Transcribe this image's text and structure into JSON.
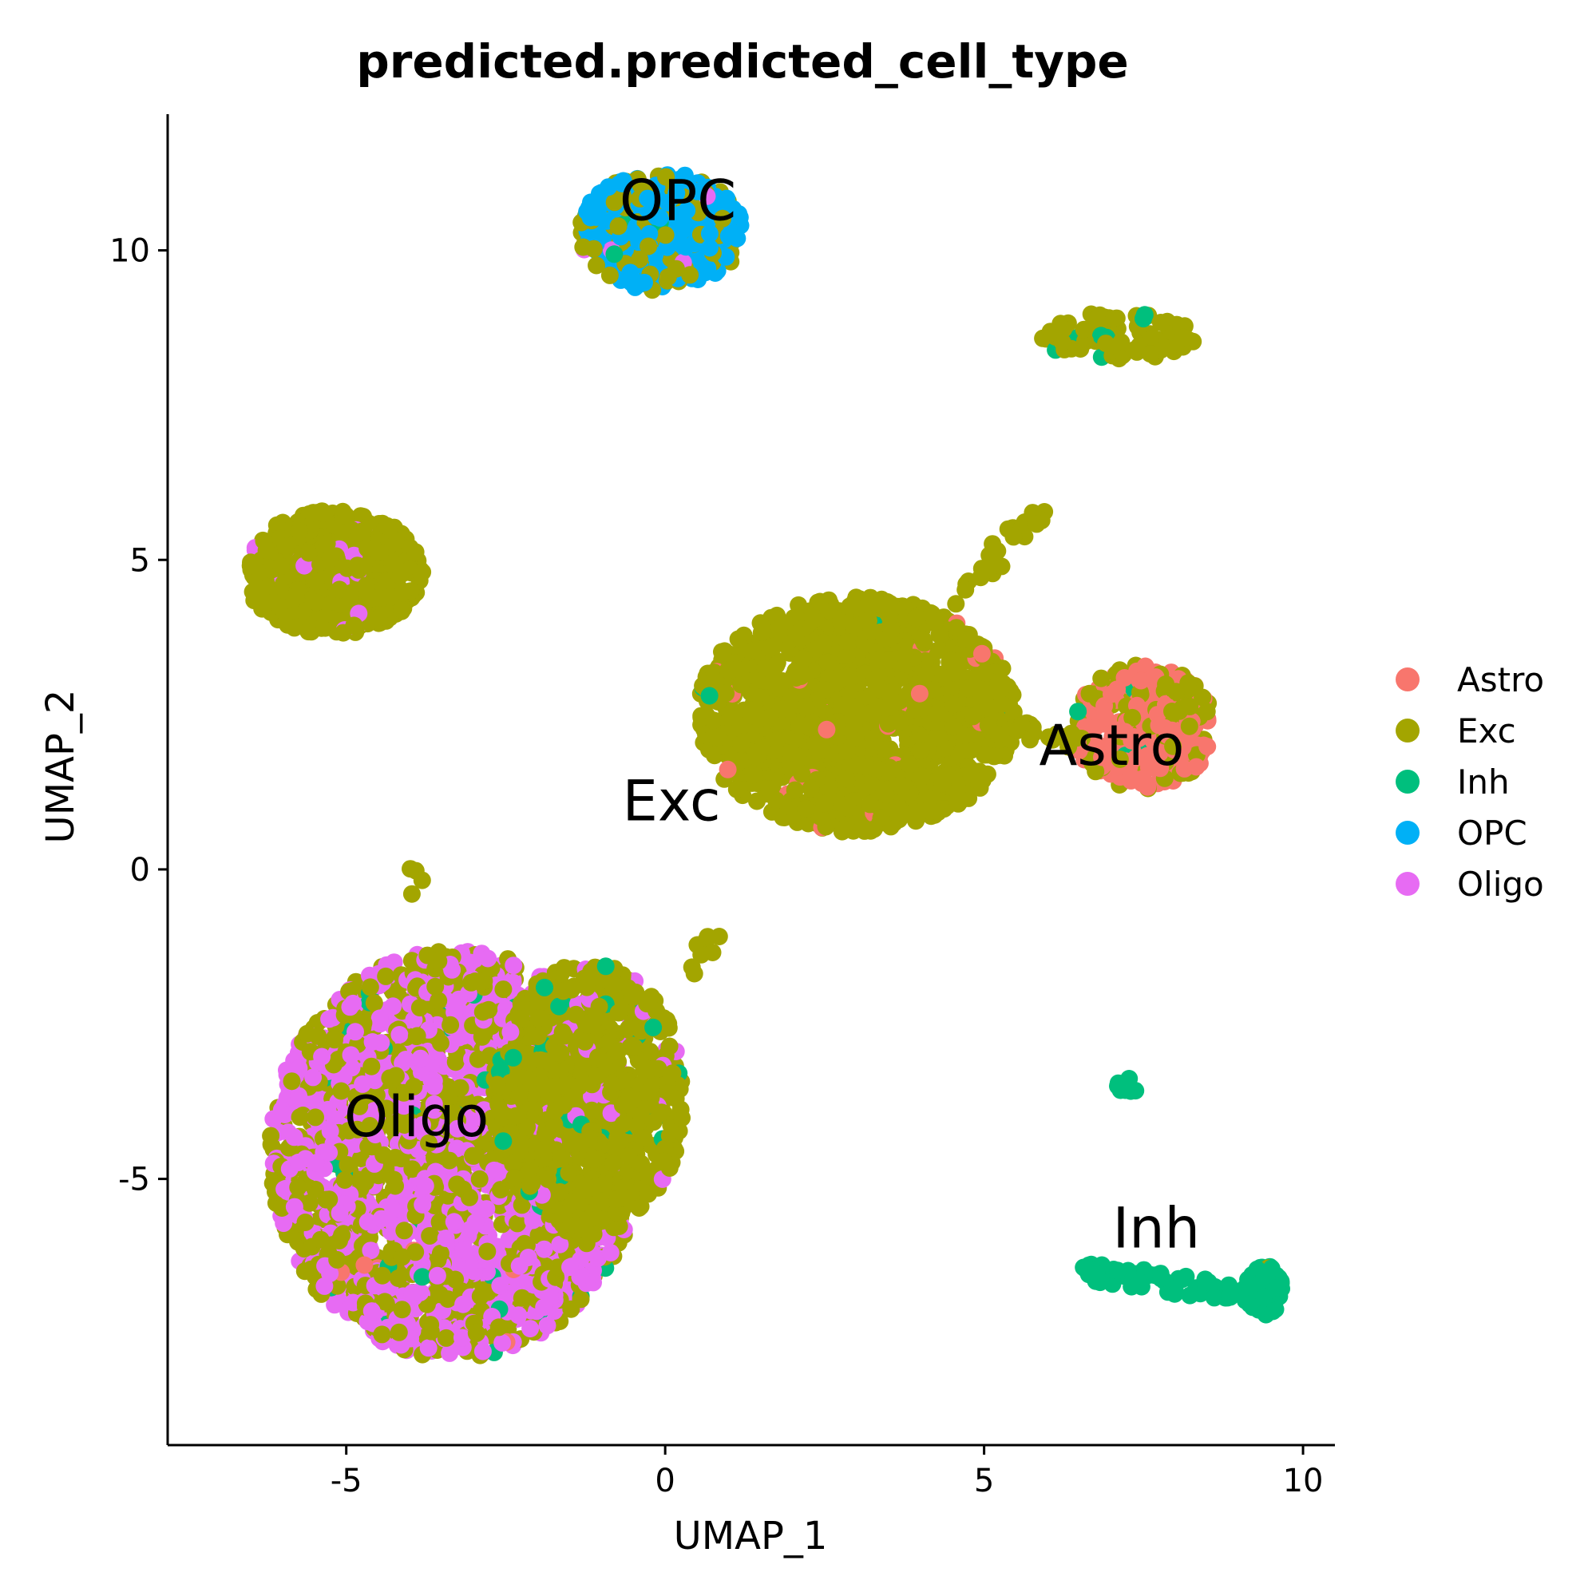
{
  "chart_data": {
    "type": "scatter",
    "title": "predicted.predicted_cell_type",
    "xlabel": "UMAP_1",
    "ylabel": "UMAP_2",
    "xlim": [
      -7.8,
      10.5
    ],
    "ylim": [
      -9.3,
      12.2
    ],
    "xticks": [
      -5,
      0,
      5,
      10
    ],
    "xtick_labels": [
      "-5",
      "0",
      "5",
      "10"
    ],
    "yticks": [
      -5,
      0,
      5,
      10
    ],
    "ytick_labels": [
      "-5",
      "0",
      "5",
      "10"
    ],
    "grid": false,
    "legend_position": "right",
    "series": [
      {
        "name": "Astro",
        "color": "#F8766D"
      },
      {
        "name": "Exc",
        "color": "#A3A500"
      },
      {
        "name": "Inh",
        "color": "#00BF7D"
      },
      {
        "name": "OPC",
        "color": "#00B0F6"
      },
      {
        "name": "Oligo",
        "color": "#E76BF3"
      }
    ],
    "cluster_labels": [
      {
        "text": "OPC",
        "x": 0.2,
        "y": 10.8
      },
      {
        "text": "Astro",
        "x": 7.0,
        "y": 2.0
      },
      {
        "text": "Exc",
        "x": 0.1,
        "y": 1.1
      },
      {
        "text": "Oligo",
        "x": -3.9,
        "y": -4.0
      },
      {
        "text": "Inh",
        "x": 7.7,
        "y": -5.8
      }
    ],
    "clusters": [
      {
        "series": "OPC",
        "cx": -0.05,
        "cy": 10.3,
        "rx": 1.3,
        "ry": 0.95,
        "n": 350,
        "mix": [
          [
            "OPC",
            0.55
          ],
          [
            "Exc",
            0.42
          ],
          [
            "Inh",
            0.02
          ],
          [
            "Oligo",
            0.01
          ]
        ]
      },
      {
        "series": "Exc",
        "cx": 7.1,
        "cy": 8.6,
        "rx": 1.2,
        "ry": 0.4,
        "n": 90,
        "mix": [
          [
            "Exc",
            0.94
          ],
          [
            "Inh",
            0.06
          ]
        ]
      },
      {
        "series": "Exc",
        "cx": -5.2,
        "cy": 4.8,
        "rx": 1.4,
        "ry": 1.0,
        "n": 500,
        "mix": [
          [
            "Exc",
            0.95
          ],
          [
            "Oligo",
            0.04
          ],
          [
            "Inh",
            0.01
          ]
        ]
      },
      {
        "series": "Exc",
        "cx": 3.0,
        "cy": 2.5,
        "rx": 2.5,
        "ry": 1.9,
        "n": 1400,
        "mix": [
          [
            "Exc",
            0.97
          ],
          [
            "Astro",
            0.02
          ],
          [
            "Inh",
            0.01
          ]
        ]
      },
      {
        "series": "Astro",
        "cx": 7.5,
        "cy": 2.3,
        "rx": 1.1,
        "ry": 1.0,
        "n": 320,
        "mix": [
          [
            "Astro",
            0.62
          ],
          [
            "Exc",
            0.35
          ],
          [
            "Inh",
            0.03
          ]
        ]
      },
      {
        "series": "Oligo",
        "cx": -3.3,
        "cy": -4.6,
        "rx": 2.9,
        "ry": 3.3,
        "n": 2400,
        "mix": [
          [
            "Oligo",
            0.5
          ],
          [
            "Exc",
            0.47
          ],
          [
            "Inh",
            0.02
          ],
          [
            "Astro",
            0.01
          ]
        ]
      },
      {
        "series": "Exc",
        "cx": -1.2,
        "cy": -3.7,
        "rx": 1.5,
        "ry": 2.2,
        "n": 700,
        "mix": [
          [
            "Exc",
            0.9
          ],
          [
            "Inh",
            0.05
          ],
          [
            "Oligo",
            0.05
          ]
        ]
      },
      {
        "series": "Inh",
        "cx": 9.4,
        "cy": -6.8,
        "rx": 0.3,
        "ry": 0.4,
        "n": 80,
        "mix": [
          [
            "Inh",
            0.97
          ],
          [
            "Exc",
            0.03
          ]
        ]
      }
    ],
    "trails": [
      {
        "from": [
          4.6,
          4.4
        ],
        "to": [
          5.9,
          5.8
        ],
        "n": 25,
        "color": "Exc"
      },
      {
        "from": [
          5.2,
          2.3
        ],
        "to": [
          6.6,
          2.1
        ],
        "n": 18,
        "color": "Exc"
      },
      {
        "from": [
          6.6,
          -6.5
        ],
        "to": [
          9.3,
          -6.9
        ],
        "n": 70,
        "color": "Inh"
      },
      {
        "from": [
          7.1,
          -3.2
        ],
        "to": [
          7.3,
          -3.7
        ],
        "n": 10,
        "color": "Inh"
      },
      {
        "from": [
          0.3,
          -1.7
        ],
        "to": [
          0.8,
          -1.1
        ],
        "n": 8,
        "color": "Exc"
      },
      {
        "from": [
          -4.0,
          -0.3
        ],
        "to": [
          -3.9,
          0.0
        ],
        "n": 4,
        "color": "Exc"
      }
    ]
  }
}
